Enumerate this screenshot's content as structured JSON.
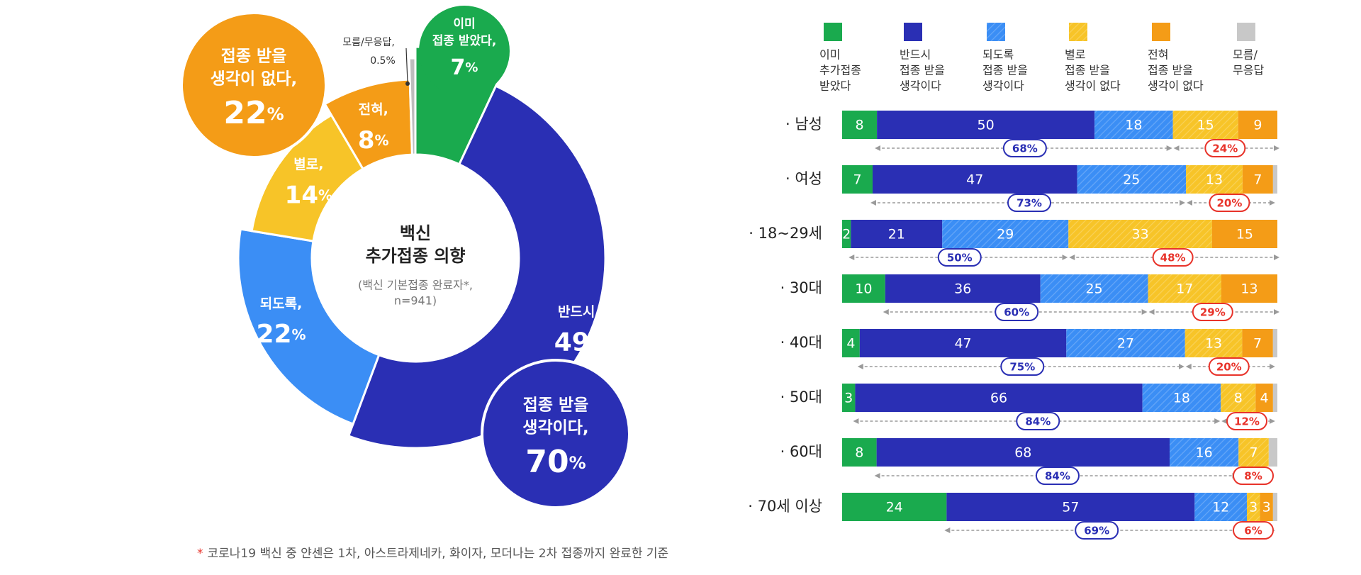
{
  "chart_data": [
    {
      "type": "pie",
      "title": "백신\n추가접종 의향",
      "subtitle": "(백신 기본접종 완료자*,\nn=941)",
      "slices": [
        {
          "key": "done",
          "label": "이미\n접종 받았다,",
          "value": 7,
          "value_text": "7",
          "color": "#1aaa4e"
        },
        {
          "key": "definitely",
          "label": "반드시,",
          "value": 49,
          "value_text": "49",
          "color": "#2a2fb4"
        },
        {
          "key": "preferably",
          "label": "되도록,",
          "value": 22,
          "value_text": "22",
          "color": "#3b8ef5"
        },
        {
          "key": "notreally",
          "label": "별로,",
          "value": 14,
          "value_text": "14",
          "color": "#f7c428"
        },
        {
          "key": "never",
          "label": "전혀,",
          "value": 8,
          "value_text": "8",
          "color": "#f49c17"
        },
        {
          "key": "dk",
          "label": "모름/무응답,",
          "value": 0.5,
          "value_text": "0.5%",
          "color": "#bdbdbd"
        }
      ],
      "summary": [
        {
          "label": "접종 받을\n생각이 없다,",
          "value": 22,
          "value_text": "22",
          "color": "#f49c17"
        },
        {
          "label": "접종 받을\n생각이다,",
          "value": 70,
          "value_text": "70",
          "color": "#2a2fb4"
        }
      ],
      "unit": "%"
    },
    {
      "type": "bar",
      "stacked": true,
      "orientation": "horizontal",
      "legend_position": "top",
      "categories": [
        "· 남성",
        "· 여성",
        "· 18~29세",
        "· 30대",
        "· 40대",
        "· 50대",
        "· 60대",
        "· 70세 이상"
      ],
      "series": [
        {
          "name": "이미\n추가접종\n받았다",
          "color": "#1aaa4e",
          "hatch": false,
          "values": [
            8,
            7,
            2,
            10,
            4,
            3,
            8,
            24
          ]
        },
        {
          "name": "반드시\n접종 받을\n생각이다",
          "color": "#2a2fb4",
          "hatch": false,
          "values": [
            50,
            47,
            21,
            36,
            47,
            66,
            68,
            57
          ]
        },
        {
          "name": "되도록\n접종 받을\n생각이다",
          "color": "#3b8ef5",
          "hatch": true,
          "values": [
            18,
            25,
            29,
            25,
            27,
            18,
            16,
            12
          ]
        },
        {
          "name": "별로\n접종 받을\n생각이 없다",
          "color": "#f7c428",
          "hatch": true,
          "values": [
            15,
            13,
            33,
            17,
            13,
            8,
            7,
            3
          ]
        },
        {
          "name": "전혀\n접종 받을\n생각이 없다",
          "color": "#f49c17",
          "hatch": false,
          "values": [
            9,
            7,
            15,
            13,
            7,
            4,
            0,
            3
          ]
        },
        {
          "name": "모름/\n무응답",
          "color": "#c8c8c8",
          "hatch": false,
          "values": [
            0,
            1,
            0,
            0,
            1,
            1,
            2,
            1
          ]
        }
      ],
      "intend_totals": [
        "68%",
        "73%",
        "50%",
        "60%",
        "75%",
        "84%",
        "84%",
        "69%"
      ],
      "not_intend_totals": [
        "24%",
        "20%",
        "48%",
        "29%",
        "20%",
        "12%",
        "8%",
        "6%"
      ],
      "xlim": [
        0,
        100
      ]
    }
  ],
  "footnote": {
    "mark": "*",
    "text": "코로나19 백신 중 얀센은 1차, 아스트라제네카, 화이자, 모더나는 2차 접종까지 완료한 기준"
  }
}
